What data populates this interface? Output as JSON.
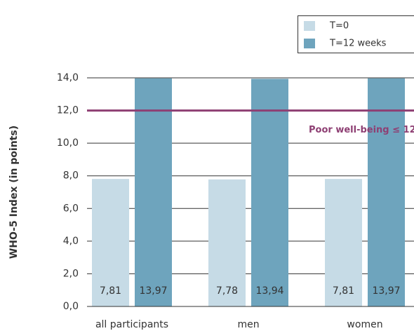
{
  "chart_data": {
    "type": "bar",
    "y_label": "WHO-5 Index (in points)",
    "categories": [
      "all participants",
      "men",
      "women"
    ],
    "series": [
      {
        "name": "T=0",
        "color": "#c6dbe6",
        "values": [
          7.81,
          7.78,
          7.81
        ],
        "value_labels": [
          "7,81",
          "7,78",
          "7,81"
        ]
      },
      {
        "name": "T=12 weeks",
        "color": "#6ea4bd",
        "values": [
          13.97,
          13.94,
          13.97
        ],
        "value_labels": [
          "13,97",
          "13,94",
          "13,97"
        ]
      }
    ],
    "ylim": [
      0,
      14
    ],
    "yticks": [
      {
        "value": 0,
        "label": "0,0"
      },
      {
        "value": 2,
        "label": "2,0"
      },
      {
        "value": 4,
        "label": "4,0"
      },
      {
        "value": 6,
        "label": "6,0"
      },
      {
        "value": 8,
        "label": "8,0"
      },
      {
        "value": 10,
        "label": "10,0"
      },
      {
        "value": 12,
        "label": "12,0"
      },
      {
        "value": 14,
        "label": "14,0"
      }
    ],
    "grid": true,
    "legend": "top-right",
    "reference_line": {
      "value": 12,
      "label": "Poor well-being ≤ 12",
      "color": "#8e3f73"
    }
  }
}
